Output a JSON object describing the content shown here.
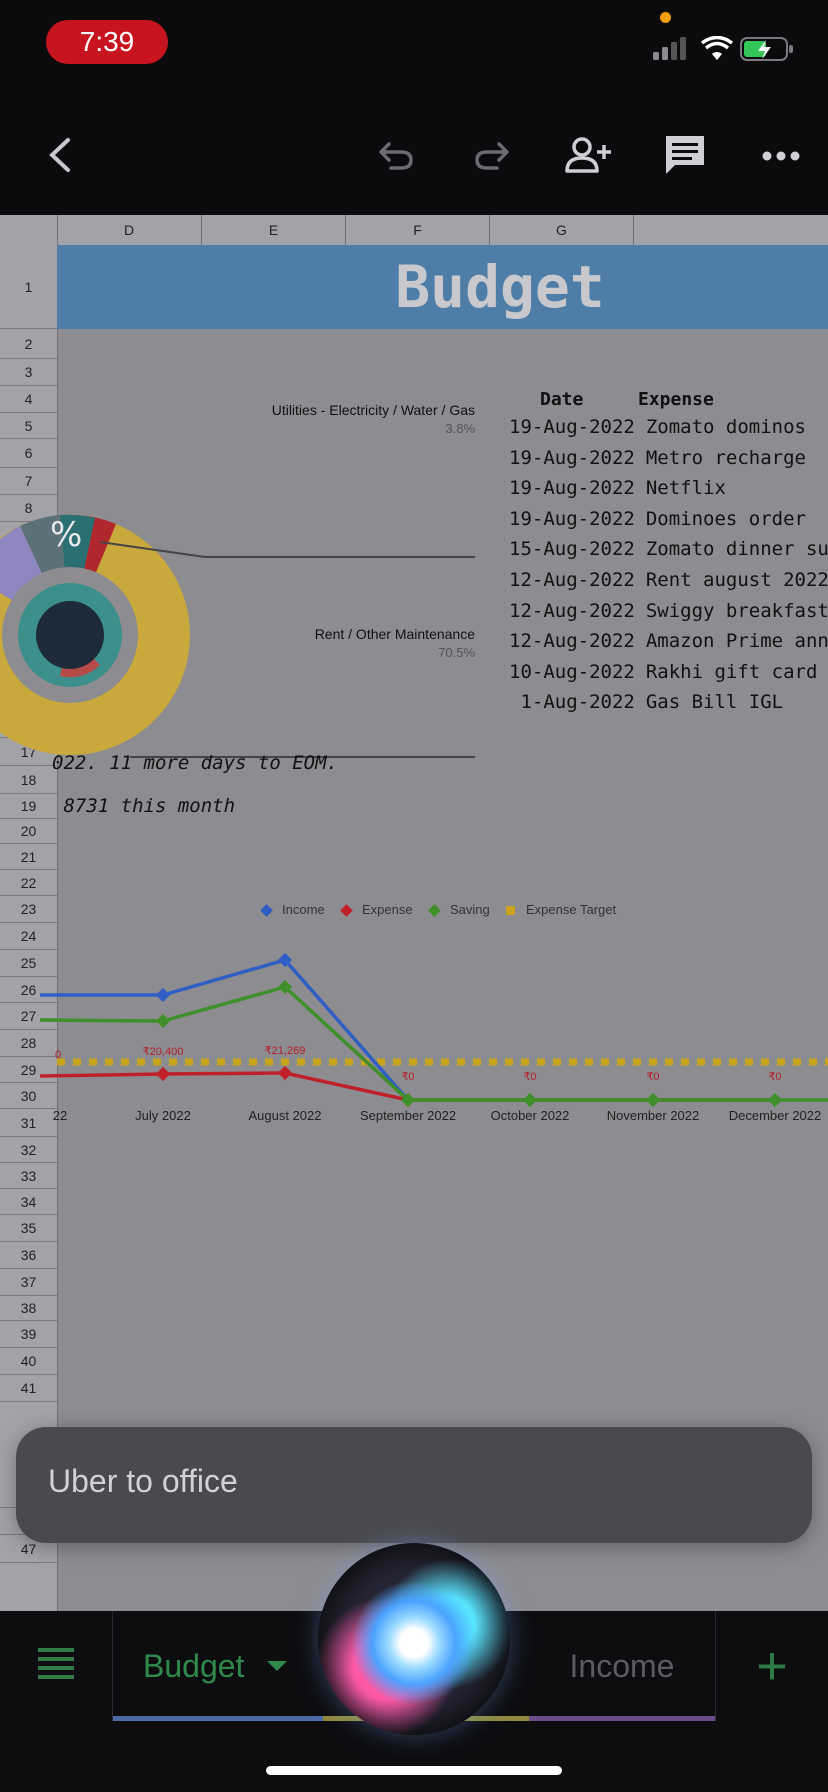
{
  "status_bar": {
    "time": "7:39"
  },
  "toolbar": {
    "back": "back-icon",
    "undo": "undo-icon",
    "redo": "redo-icon",
    "share": "add-person-icon",
    "comments": "comment-icon",
    "more": "more-icon"
  },
  "sheet": {
    "columns": [
      "D",
      "E",
      "F",
      "G"
    ],
    "rows": [
      "1",
      "2",
      "3",
      "4",
      "5",
      "6",
      "7",
      "8",
      "9",
      "10",
      "11",
      "12",
      "13",
      "14",
      "15",
      "16",
      "17",
      "18",
      "19",
      "20",
      "21",
      "22",
      "23",
      "24",
      "25",
      "26",
      "27",
      "28",
      "29",
      "30",
      "31",
      "32",
      "33",
      "34",
      "35",
      "36",
      "37",
      "38",
      "39",
      "40",
      "41",
      "45",
      "46",
      "47"
    ],
    "title": "Budget",
    "donut": {
      "center_label": "%",
      "callouts": [
        {
          "label": "Utilities - Electricity / Water / Gas",
          "value": "3.8%"
        },
        {
          "label": "Rent / Other Maintenance",
          "value": "70.5%"
        }
      ]
    },
    "expenses": {
      "header_date": "Date",
      "header_expense": "Expense",
      "rows": [
        {
          "date": "19-Aug-2022",
          "expense": "Zomato dominos"
        },
        {
          "date": "19-Aug-2022",
          "expense": "Metro recharge"
        },
        {
          "date": "19-Aug-2022",
          "expense": "Netflix"
        },
        {
          "date": "19-Aug-2022",
          "expense": "Dominoes order"
        },
        {
          "date": "15-Aug-2022",
          "expense": "Zomato dinner subw"
        },
        {
          "date": "12-Aug-2022",
          "expense": "Rent august 2022"
        },
        {
          "date": "12-Aug-2022",
          "expense": "Swiggy breakfast"
        },
        {
          "date": "12-Aug-2022",
          "expense": "Amazon Prime annua"
        },
        {
          "date": "10-Aug-2022",
          "expense": "Rakhi gift card"
        },
        {
          "date": " 1-Aug-2022",
          "expense": "Gas Bill IGL"
        }
      ]
    },
    "notes": {
      "days_left": "022. 11 more days to EOM.",
      "month_total": " 8731 this month"
    }
  },
  "chart_data": {
    "type": "line",
    "legend": [
      "Income",
      "Expense",
      "Saving",
      "Expense Target"
    ],
    "categories": [
      "22",
      "July 2022",
      "August 2022",
      "September 2022",
      "October 2022",
      "November 2022",
      "December 2022"
    ],
    "series": [
      {
        "name": "Income",
        "color": "#2f5fc4",
        "values": [
          null,
          null,
          null,
          0,
          0,
          0,
          0
        ]
      },
      {
        "name": "Expense",
        "color": "#c0202a",
        "values": [
          null,
          20400,
          21269,
          0,
          0,
          0,
          0
        ]
      },
      {
        "name": "Saving",
        "color": "#3f8f2a",
        "values": [
          null,
          null,
          null,
          0,
          0,
          0,
          0
        ]
      },
      {
        "name": "Expense Target",
        "color": "#c9a319"
      }
    ],
    "data_labels": [
      "0",
      "₹20,400",
      "₹21,269",
      "₹0",
      "₹0",
      "₹0",
      "₹0"
    ]
  },
  "siri": {
    "text": "Uber to office"
  },
  "tabs": {
    "menu": "menu-icon",
    "active": "Budget",
    "other": "Income",
    "add": "+"
  }
}
